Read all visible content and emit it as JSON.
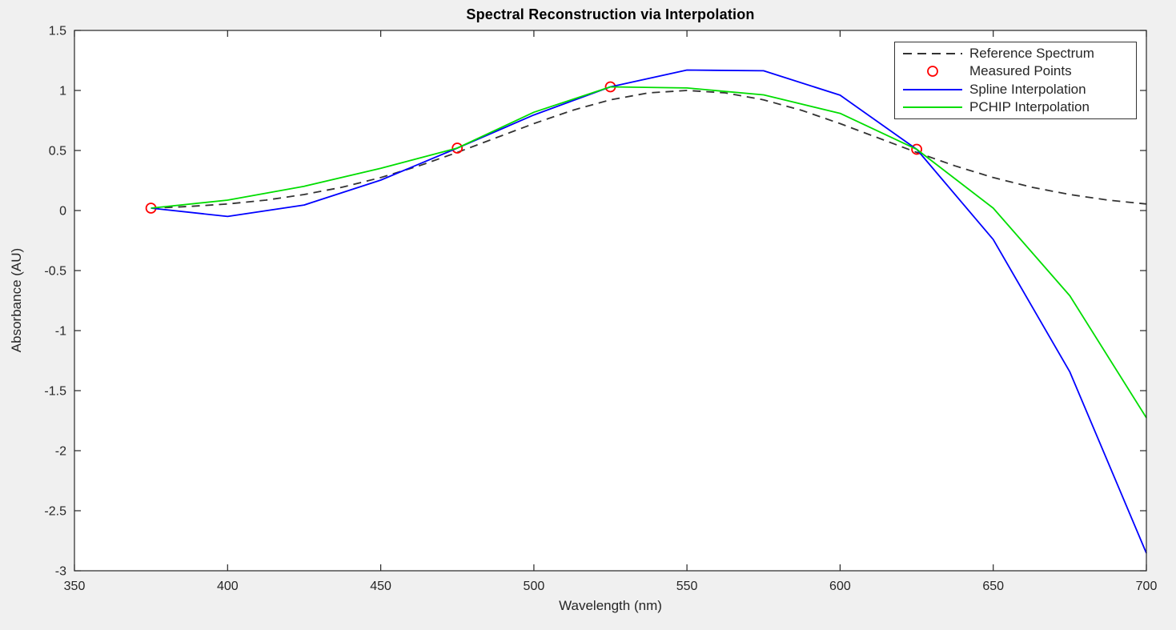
{
  "figure": {
    "background_color": "#f0f0f0",
    "plot_background_color": "#ffffff",
    "axis_color": "#262626"
  },
  "chart_data": {
    "type": "line",
    "title": "Spectral Reconstruction via Interpolation",
    "xlabel": "Wavelength (nm)",
    "ylabel": "Absorbance (AU)",
    "xlim": [
      350,
      700
    ],
    "ylim": [
      -3,
      1.5
    ],
    "x_ticks": [
      350,
      400,
      450,
      500,
      550,
      600,
      650,
      700
    ],
    "x_tick_labels": [
      "350",
      "400",
      "450",
      "500",
      "550",
      "600",
      "650",
      "700"
    ],
    "y_ticks": [
      -3,
      -2.5,
      -2,
      -1.5,
      -1,
      -0.5,
      0,
      0.5,
      1,
      1.5
    ],
    "y_tick_labels": [
      "-3",
      "-2.5",
      "-2",
      "-1.5",
      "-1",
      "-0.5",
      "0",
      "0.5",
      "1",
      "1.5"
    ],
    "grid": false,
    "legend_position": "top-right",
    "series": [
      {
        "name": "Reference Spectrum",
        "type": "line",
        "style": "dashed",
        "color": "#333333",
        "x": [
          375,
          387.5,
          400,
          412.5,
          425,
          437.5,
          450,
          462.5,
          475,
          487.5,
          500,
          512.5,
          525,
          537.5,
          550,
          562.5,
          575,
          587.5,
          600,
          612.5,
          625,
          637.5,
          650,
          662.5,
          675,
          687.5,
          700
        ],
        "y": [
          0.019,
          0.034,
          0.055,
          0.087,
          0.133,
          0.195,
          0.275,
          0.372,
          0.484,
          0.604,
          0.724,
          0.834,
          0.922,
          0.98,
          1.0,
          0.98,
          0.922,
          0.834,
          0.724,
          0.604,
          0.484,
          0.372,
          0.275,
          0.195,
          0.133,
          0.087,
          0.055
        ]
      },
      {
        "name": "Measured Points",
        "type": "scatter",
        "marker": "open-circle",
        "color": "#ff0000",
        "x": [
          375,
          475,
          525,
          625
        ],
        "y": [
          0.02,
          0.52,
          1.03,
          0.51
        ]
      },
      {
        "name": "Spline Interpolation",
        "type": "line",
        "style": "solid",
        "color": "#0000ff",
        "x": [
          375,
          400,
          425,
          450,
          475,
          500,
          525,
          550,
          575,
          600,
          625,
          650,
          675,
          700
        ],
        "y": [
          0.02,
          -0.049,
          0.046,
          0.253,
          0.52,
          0.796,
          1.03,
          1.17,
          1.164,
          0.961,
          0.51,
          -0.241,
          -1.344,
          -2.853
        ]
      },
      {
        "name": "PCHIP Interpolation",
        "type": "line",
        "style": "solid",
        "color": "#00dd00",
        "x": [
          375,
          400,
          425,
          450,
          475,
          500,
          525,
          550,
          575,
          600,
          625,
          650,
          675,
          700
        ],
        "y": [
          0.02,
          0.087,
          0.202,
          0.351,
          0.52,
          0.819,
          1.03,
          1.021,
          0.963,
          0.809,
          0.51,
          0.02,
          -0.71,
          -1.726
        ]
      }
    ]
  }
}
